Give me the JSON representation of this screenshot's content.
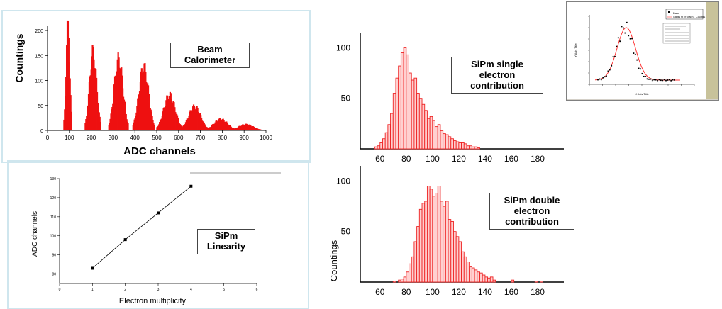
{
  "chart_data": [
    {
      "type": "bar",
      "title": "Beam Calorimeter",
      "xlabel": "ADC channels",
      "ylabel": "Countings",
      "xlim": [
        0,
        1000
      ],
      "ylim": [
        0,
        210
      ],
      "xticks": [
        "0",
        "100",
        "200",
        "300",
        "400",
        "500",
        "600",
        "700",
        "800",
        "900",
        "1000"
      ],
      "yticks": [
        "0",
        "50",
        "100",
        "150",
        "200"
      ],
      "peaks": [
        {
          "x": 90,
          "height": 215,
          "width": 8
        },
        {
          "x": 205,
          "height": 155,
          "width": 16
        },
        {
          "x": 322,
          "height": 140,
          "width": 20
        },
        {
          "x": 437,
          "height": 125,
          "width": 22
        },
        {
          "x": 555,
          "height": 70,
          "width": 26
        },
        {
          "x": 670,
          "height": 47,
          "width": 28
        },
        {
          "x": 790,
          "height": 22,
          "width": 32
        },
        {
          "x": 905,
          "height": 12,
          "width": 34
        }
      ]
    },
    {
      "type": "scatter",
      "title": "SiPm Linearity",
      "xlabel": "Electron multiplicity",
      "ylabel": "ADC channels",
      "xlim": [
        0,
        6
      ],
      "ylim": [
        75,
        130
      ],
      "xticks": [
        "0",
        "1",
        "2",
        "3",
        "4",
        "5",
        "6"
      ],
      "yticks": [
        "80",
        "90",
        "100",
        "110",
        "120",
        "130"
      ],
      "x": [
        1,
        2,
        3,
        4
      ],
      "y": [
        83,
        98,
        112,
        126
      ]
    },
    {
      "type": "bar",
      "title": "SiPm single electron contribution",
      "xlabel": "",
      "ylabel": "",
      "xlim": [
        45,
        200
      ],
      "ylim": [
        0,
        115
      ],
      "xticks": [
        "60",
        "80",
        "100",
        "120",
        "140",
        "160",
        "180"
      ],
      "yticks": [
        "50",
        "100"
      ],
      "bin_width": 2,
      "x": [
        56,
        58,
        60,
        62,
        64,
        66,
        68,
        70,
        72,
        74,
        76,
        78,
        80,
        82,
        84,
        86,
        88,
        90,
        92,
        94,
        96,
        98,
        100,
        102,
        104,
        106,
        108,
        110,
        112,
        114,
        116,
        118,
        120,
        122,
        124,
        126,
        128,
        130,
        132,
        134
      ],
      "y": [
        2,
        3,
        6,
        10,
        16,
        24,
        35,
        55,
        70,
        82,
        95,
        100,
        93,
        75,
        68,
        70,
        55,
        50,
        44,
        38,
        30,
        32,
        28,
        22,
        24,
        18,
        15,
        14,
        12,
        10,
        8,
        7,
        6,
        6,
        5,
        3,
        3,
        2,
        2,
        1
      ]
    },
    {
      "type": "bar",
      "title": "SiPm double electron contribution",
      "xlabel": "",
      "ylabel": "Countings",
      "xlim": [
        45,
        200
      ],
      "ylim": [
        0,
        115
      ],
      "xticks": [
        "60",
        "80",
        "100",
        "120",
        "140",
        "160",
        "180"
      ],
      "yticks": [
        "50",
        "100"
      ],
      "bin_width": 2,
      "x": [
        70,
        74,
        76,
        78,
        80,
        82,
        84,
        86,
        88,
        90,
        92,
        94,
        96,
        98,
        100,
        102,
        104,
        106,
        108,
        110,
        112,
        114,
        116,
        118,
        120,
        122,
        124,
        126,
        128,
        130,
        132,
        134,
        136,
        138,
        140,
        142,
        144,
        146,
        160,
        178,
        182
      ],
      "y": [
        1,
        2,
        3,
        5,
        10,
        18,
        25,
        40,
        55,
        72,
        78,
        80,
        95,
        92,
        85,
        88,
        95,
        80,
        75,
        80,
        62,
        60,
        50,
        45,
        40,
        30,
        25,
        20,
        15,
        14,
        12,
        10,
        9,
        7,
        5,
        4,
        5,
        2,
        2,
        1,
        1
      ]
    }
  ],
  "inset": {
    "legend_entry": "Data",
    "legend_fit": "Gauss fit of Graph1_Counts1",
    "xlabel": "X Axis Title",
    "ylabel": "Y Axis Title"
  }
}
